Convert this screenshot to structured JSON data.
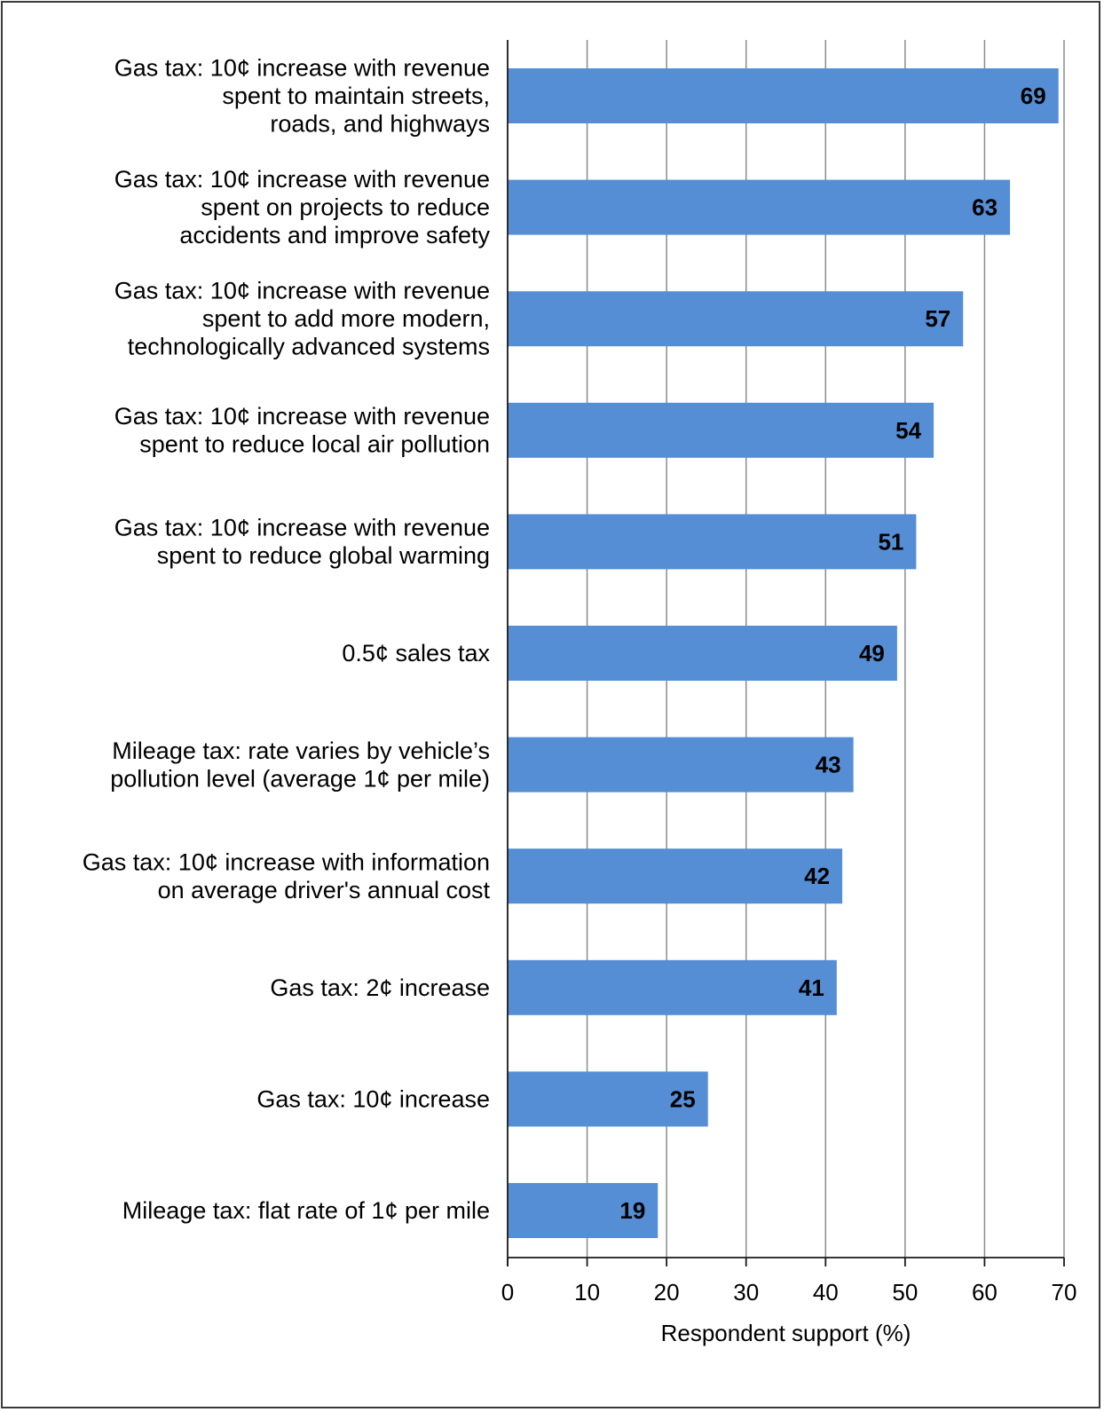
{
  "chart_data": {
    "type": "bar",
    "orientation": "horizontal",
    "categories": [
      [
        "Gas tax: 10¢ increase with revenue",
        "spent to maintain streets,",
        "roads, and highways"
      ],
      [
        "Gas tax: 10¢ increase with revenue",
        "spent on projects to reduce",
        "accidents and improve safety"
      ],
      [
        "Gas tax: 10¢ increase with revenue",
        "spent to add more modern,",
        "technologically advanced systems"
      ],
      [
        "Gas tax: 10¢ increase with revenue",
        "spent to reduce local air pollution"
      ],
      [
        "Gas tax: 10¢ increase with revenue",
        "spent to reduce global warming"
      ],
      [
        "0.5¢ sales tax"
      ],
      [
        "Mileage tax: rate varies by vehicle’s",
        "pollution level (average 1¢ per mile)"
      ],
      [
        "Gas tax: 10¢ increase with information",
        "on average driver's annual cost"
      ],
      [
        "Gas tax: 2¢ increase"
      ],
      [
        "Gas tax: 10¢ increase"
      ],
      [
        "Mileage tax: flat rate of 1¢ per mile"
      ]
    ],
    "values": [
      69.3,
      63.2,
      57.3,
      53.6,
      51.4,
      49.0,
      43.5,
      42.1,
      41.4,
      25.2,
      18.9
    ],
    "data_labels": [
      "69",
      "63",
      "57",
      "54",
      "51",
      "49",
      "43",
      "42",
      "41",
      "25",
      "19"
    ],
    "xlabel": "Respondent support (%)",
    "ylabel": "",
    "title": "",
    "xlim": [
      0,
      70
    ],
    "xticks": [
      0,
      10,
      20,
      30,
      40,
      50,
      60,
      70
    ],
    "grid": "vertical",
    "legend": "none",
    "colors": {
      "bar": "#558ed5",
      "grid": "#8c8c8c",
      "axis": "#1a1a1a"
    }
  }
}
